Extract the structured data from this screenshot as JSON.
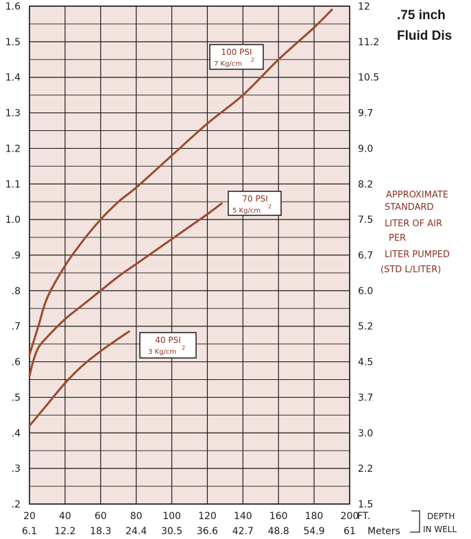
{
  "header": {
    "title": ".75 inch",
    "subtitle": "Fluid Dis"
  },
  "side_label": {
    "lines": [
      "APPROXIMATE",
      "STANDARD",
      "LITER OF AIR",
      "PER",
      "LITER PUMPED",
      "(STD L/LITER)"
    ]
  },
  "depth_label": {
    "ft_unit": "FT.",
    "m_unit": "Meters",
    "line1": "DEPTH",
    "line2": "IN WELL"
  },
  "colors": {
    "background": "#ffffff",
    "plot_fill": "#f2e3df",
    "grid": "#1a1a1a",
    "curve": "#9b4a2e",
    "label_text": "#8a3222"
  },
  "chart_data": {
    "type": "line",
    "title": "",
    "xlabel": "FT.",
    "xlabel_secondary": "Meters",
    "ylabel": "",
    "ylabel_right": "APPROXIMATE STANDARD LITER OF AIR PER LITER PUMPED (STD L/LITER)",
    "xlim": [
      20,
      200
    ],
    "ylim": [
      0.2,
      1.6
    ],
    "x_ticks": [
      20,
      40,
      60,
      80,
      100,
      120,
      140,
      160,
      180,
      200
    ],
    "x_ticks_meters": [
      "6.1",
      "12.2",
      "18.3",
      "24.4",
      "30.5",
      "36.6",
      "42.7",
      "48.8",
      "54.9",
      "61"
    ],
    "y_ticks": [
      0.2,
      0.3,
      0.4,
      0.5,
      0.6,
      0.7,
      0.8,
      0.9,
      1.0,
      1.1,
      1.2,
      1.3,
      1.4,
      1.5,
      1.6
    ],
    "y_tick_labels": [
      ".2",
      ".3",
      ".4",
      ".5",
      ".6",
      ".7",
      ".8",
      ".9",
      "1.0",
      "1.1",
      "1.2",
      "1.3",
      "1.4",
      "1.5",
      "1.6"
    ],
    "y_ticks_right": [
      "1.5",
      "2.2",
      "3.0",
      "3.7",
      "4.5",
      "5.2",
      "6.0",
      "6.7",
      "7.5",
      "8.2",
      "9.0",
      "9.7",
      "10.5",
      "11.2",
      "12"
    ],
    "grid": true,
    "series": [
      {
        "name": "100 PSI",
        "sub": "7 Kg/cm",
        "sup": "2",
        "x": [
          20,
          25,
          30,
          40,
          50,
          60,
          70,
          80,
          100,
          120,
          140,
          160,
          180,
          190
        ],
        "y": [
          0.62,
          0.7,
          0.78,
          0.87,
          0.94,
          1.0,
          1.05,
          1.09,
          1.18,
          1.27,
          1.35,
          1.45,
          1.54,
          1.59
        ]
      },
      {
        "name": "70 PSI",
        "sub": "5 Kg/cm",
        "sup": "2",
        "x": [
          20,
          22,
          25,
          30,
          40,
          50,
          60,
          70,
          80,
          90,
          100,
          110,
          120,
          128
        ],
        "y": [
          0.56,
          0.6,
          0.64,
          0.67,
          0.72,
          0.76,
          0.8,
          0.84,
          0.875,
          0.91,
          0.945,
          0.98,
          1.015,
          1.045
        ]
      },
      {
        "name": "40 PSI",
        "sub": "3 Kg/cm",
        "sup": "2",
        "x": [
          20,
          30,
          40,
          50,
          60,
          70,
          76
        ],
        "y": [
          0.42,
          0.48,
          0.54,
          0.59,
          0.63,
          0.665,
          0.685
        ]
      }
    ]
  }
}
